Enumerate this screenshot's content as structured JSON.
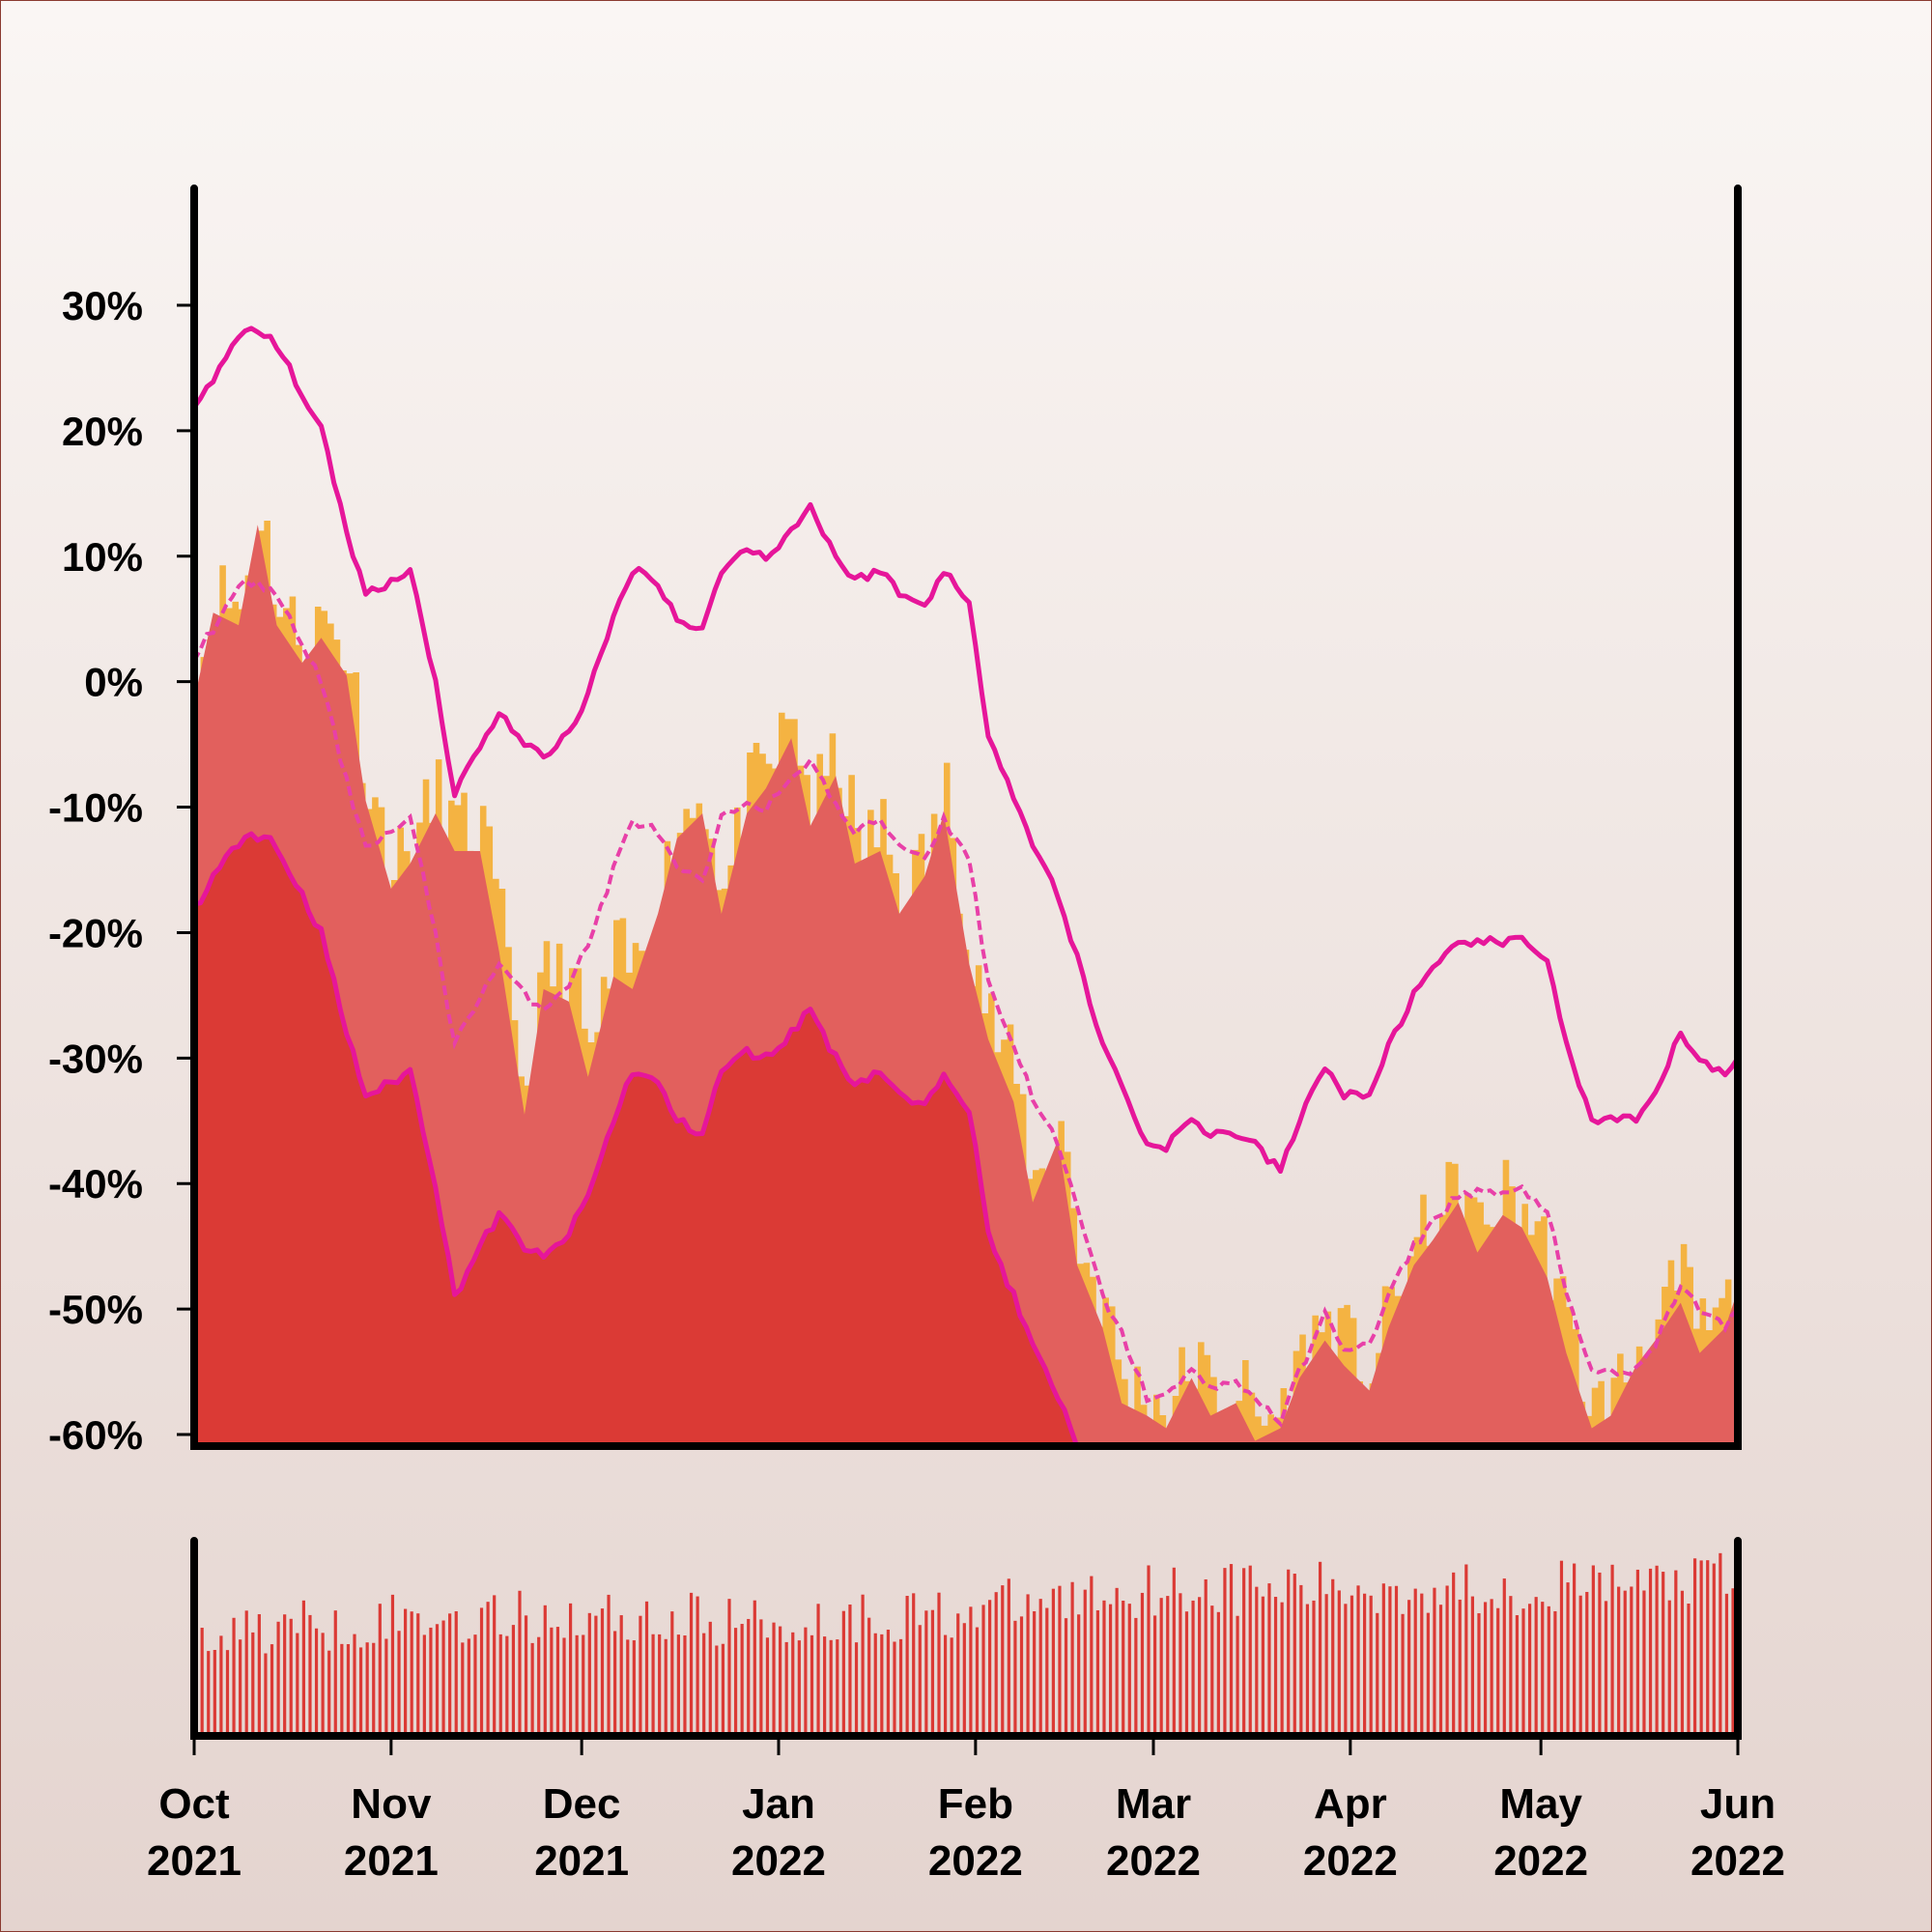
{
  "chart_data": {
    "type": "area",
    "title": "",
    "xlabel": "",
    "ylabel": "",
    "x_range": [
      "2021-10-01",
      "2022-06-01"
    ],
    "ylim": [
      -60,
      30
    ],
    "y_ticks": [
      {
        "value": 30,
        "label": "30%"
      },
      {
        "value": 20,
        "label": "20%"
      },
      {
        "value": 10,
        "label": "10%"
      },
      {
        "value": 0,
        "label": "0%"
      },
      {
        "value": -10,
        "label": "-10%"
      },
      {
        "value": -20,
        "label": "-20%"
      },
      {
        "value": -30,
        "label": "-30%"
      },
      {
        "value": -40,
        "label": "-40%"
      },
      {
        "value": -50,
        "label": "-50%"
      },
      {
        "value": -60,
        "label": "-60%"
      }
    ],
    "x_ticks": [
      {
        "date": "2021-10-01",
        "month": "Oct",
        "year": "2021"
      },
      {
        "date": "2021-11-01",
        "month": "Nov",
        "year": "2021"
      },
      {
        "date": "2021-12-01",
        "month": "Dec",
        "year": "2021"
      },
      {
        "date": "2022-01-01",
        "month": "Jan",
        "year": "2022"
      },
      {
        "date": "2022-02-01",
        "month": "Feb",
        "year": "2022"
      },
      {
        "date": "2022-03-01",
        "month": "Mar",
        "year": "2022"
      },
      {
        "date": "2022-04-01",
        "month": "Apr",
        "year": "2022"
      },
      {
        "date": "2022-05-01",
        "month": "May",
        "year": "2022"
      },
      {
        "date": "2022-06-01",
        "month": "Jun",
        "year": "2022"
      }
    ],
    "grid": false,
    "legend": "none",
    "colors": {
      "background_top": "#faf6f4",
      "background_bottom": "#e4d4cf",
      "frame": "#000000",
      "band_fill": "#f4b342",
      "price_fill": "#e2605d",
      "lower_band_fill": "#db3a35",
      "band_line": "#e6169a",
      "average_line": "#e840a8",
      "volume_fill": "#db3a35"
    },
    "series": [
      {
        "role": "price",
        "style": "filled-area",
        "points": [
          [
            "2021-10-01",
            0
          ],
          [
            "2021-10-04",
            7
          ],
          [
            "2021-10-08",
            6
          ],
          [
            "2021-10-11",
            14
          ],
          [
            "2021-10-14",
            6
          ],
          [
            "2021-10-18",
            3
          ],
          [
            "2021-10-21",
            5
          ],
          [
            "2021-10-25",
            2
          ],
          [
            "2021-10-28",
            -8
          ],
          [
            "2021-11-01",
            -15
          ],
          [
            "2021-11-04",
            -13
          ],
          [
            "2021-11-08",
            -9
          ],
          [
            "2021-11-11",
            -12
          ],
          [
            "2021-11-15",
            -12
          ],
          [
            "2021-11-18",
            -20
          ],
          [
            "2021-11-22",
            -33
          ],
          [
            "2021-11-25",
            -23
          ],
          [
            "2021-11-29",
            -24
          ],
          [
            "2021-12-02",
            -30
          ],
          [
            "2021-12-06",
            -22
          ],
          [
            "2021-12-09",
            -23
          ],
          [
            "2021-12-13",
            -17
          ],
          [
            "2021-12-16",
            -11
          ],
          [
            "2021-12-20",
            -9
          ],
          [
            "2021-12-23",
            -17
          ],
          [
            "2021-12-27",
            -9
          ],
          [
            "2021-12-30",
            -7
          ],
          [
            "2022-01-03",
            -3
          ],
          [
            "2022-01-06",
            -10
          ],
          [
            "2022-01-10",
            -6
          ],
          [
            "2022-01-13",
            -13
          ],
          [
            "2022-01-17",
            -12
          ],
          [
            "2022-01-20",
            -17
          ],
          [
            "2022-01-24",
            -14
          ],
          [
            "2022-01-27",
            -9
          ],
          [
            "2022-01-31",
            -21
          ],
          [
            "2022-02-03",
            -27
          ],
          [
            "2022-02-07",
            -32
          ],
          [
            "2022-02-10",
            -40
          ],
          [
            "2022-02-14",
            -35
          ],
          [
            "2022-02-17",
            -45
          ],
          [
            "2022-02-21",
            -50
          ],
          [
            "2022-02-24",
            -56
          ],
          [
            "2022-02-28",
            -57
          ],
          [
            "2022-03-03",
            -58
          ],
          [
            "2022-03-07",
            -54
          ],
          [
            "2022-03-10",
            -57
          ],
          [
            "2022-03-14",
            -56
          ],
          [
            "2022-03-17",
            -59
          ],
          [
            "2022-03-21",
            -58
          ],
          [
            "2022-03-24",
            -54
          ],
          [
            "2022-03-28",
            -51
          ],
          [
            "2022-03-31",
            -53
          ],
          [
            "2022-04-04",
            -55
          ],
          [
            "2022-04-07",
            -50
          ],
          [
            "2022-04-11",
            -45
          ],
          [
            "2022-04-14",
            -43
          ],
          [
            "2022-04-18",
            -40
          ],
          [
            "2022-04-21",
            -44
          ],
          [
            "2022-04-25",
            -41
          ],
          [
            "2022-04-28",
            -42
          ],
          [
            "2022-05-02",
            -46
          ],
          [
            "2022-05-05",
            -52
          ],
          [
            "2022-05-09",
            -58
          ],
          [
            "2022-05-12",
            -57
          ],
          [
            "2022-05-16",
            -53
          ],
          [
            "2022-05-19",
            -51
          ],
          [
            "2022-05-23",
            -48
          ],
          [
            "2022-05-26",
            -52
          ],
          [
            "2022-05-30",
            -50
          ],
          [
            "2022-06-01",
            -47
          ]
        ]
      },
      {
        "role": "upper-band",
        "style": "solid-line",
        "points": [
          [
            "2021-10-01",
            22
          ],
          [
            "2021-10-05",
            25
          ],
          [
            "2021-10-09",
            28
          ],
          [
            "2021-10-13",
            27.5
          ],
          [
            "2021-10-17",
            24
          ],
          [
            "2021-10-21",
            20
          ],
          [
            "2021-10-25",
            12
          ],
          [
            "2021-10-28",
            7
          ],
          [
            "2021-11-01",
            8
          ],
          [
            "2021-11-04",
            9
          ],
          [
            "2021-11-08",
            0
          ],
          [
            "2021-11-11",
            -9
          ],
          [
            "2021-11-15",
            -5
          ],
          [
            "2021-11-18",
            -2.5
          ],
          [
            "2021-11-22",
            -5
          ],
          [
            "2021-11-25",
            -6
          ],
          [
            "2021-11-29",
            -4
          ],
          [
            "2021-12-02",
            -1
          ],
          [
            "2021-12-06",
            5
          ],
          [
            "2021-12-09",
            9
          ],
          [
            "2021-12-13",
            8
          ],
          [
            "2021-12-16",
            5
          ],
          [
            "2021-12-20",
            4
          ],
          [
            "2021-12-23",
            9
          ],
          [
            "2021-12-27",
            10.5
          ],
          [
            "2021-12-30",
            10
          ],
          [
            "2022-01-03",
            12
          ],
          [
            "2022-01-06",
            14
          ],
          [
            "2022-01-10",
            10
          ],
          [
            "2022-01-13",
            8
          ],
          [
            "2022-01-17",
            9
          ],
          [
            "2022-01-20",
            7
          ],
          [
            "2022-01-24",
            6
          ],
          [
            "2022-01-27",
            9
          ],
          [
            "2022-01-31",
            6
          ],
          [
            "2022-02-03",
            -4
          ],
          [
            "2022-02-07",
            -9
          ],
          [
            "2022-02-10",
            -13
          ],
          [
            "2022-02-14",
            -17
          ],
          [
            "2022-02-17",
            -22
          ],
          [
            "2022-02-21",
            -29
          ],
          [
            "2022-02-24",
            -32
          ],
          [
            "2022-02-28",
            -37
          ],
          [
            "2022-03-03",
            -37
          ],
          [
            "2022-03-07",
            -35
          ],
          [
            "2022-03-10",
            -36
          ],
          [
            "2022-03-14",
            -36
          ],
          [
            "2022-03-17",
            -37
          ],
          [
            "2022-03-21",
            -39
          ],
          [
            "2022-03-24",
            -35
          ],
          [
            "2022-03-28",
            -30.5
          ],
          [
            "2022-03-31",
            -33
          ],
          [
            "2022-04-04",
            -33
          ],
          [
            "2022-04-07",
            -29
          ],
          [
            "2022-04-11",
            -25
          ],
          [
            "2022-04-14",
            -23
          ],
          [
            "2022-04-18",
            -21
          ],
          [
            "2022-04-21",
            -20.5
          ],
          [
            "2022-04-25",
            -21
          ],
          [
            "2022-04-28",
            -20.5
          ],
          [
            "2022-05-02",
            -22
          ],
          [
            "2022-05-05",
            -29
          ],
          [
            "2022-05-09",
            -35
          ],
          [
            "2022-05-12",
            -35
          ],
          [
            "2022-05-16",
            -35
          ],
          [
            "2022-05-19",
            -33
          ],
          [
            "2022-05-23",
            -28
          ],
          [
            "2022-05-26",
            -30
          ],
          [
            "2022-05-30",
            -31.5
          ],
          [
            "2022-06-01",
            -30
          ]
        ]
      },
      {
        "role": "moving-average",
        "style": "dashed-line",
        "points": [
          [
            "2021-10-01",
            2
          ],
          [
            "2021-10-05",
            5
          ],
          [
            "2021-10-09",
            8
          ],
          [
            "2021-10-13",
            7.5
          ],
          [
            "2021-10-17",
            4
          ],
          [
            "2021-10-21",
            0
          ],
          [
            "2021-10-25",
            -8
          ],
          [
            "2021-10-28",
            -13
          ],
          [
            "2021-11-01",
            -12
          ],
          [
            "2021-11-04",
            -11
          ],
          [
            "2021-11-08",
            -20
          ],
          [
            "2021-11-11",
            -29
          ],
          [
            "2021-11-15",
            -25
          ],
          [
            "2021-11-18",
            -22.5
          ],
          [
            "2021-11-22",
            -25
          ],
          [
            "2021-11-25",
            -26
          ],
          [
            "2021-11-29",
            -24
          ],
          [
            "2021-12-02",
            -21
          ],
          [
            "2021-12-06",
            -15
          ],
          [
            "2021-12-09",
            -11
          ],
          [
            "2021-12-13",
            -12
          ],
          [
            "2021-12-16",
            -15
          ],
          [
            "2021-12-20",
            -16
          ],
          [
            "2021-12-23",
            -11
          ],
          [
            "2021-12-27",
            -9.5
          ],
          [
            "2021-12-30",
            -10
          ],
          [
            "2022-01-03",
            -8
          ],
          [
            "2022-01-06",
            -6
          ],
          [
            "2022-01-10",
            -10
          ],
          [
            "2022-01-13",
            -12
          ],
          [
            "2022-01-17",
            -11
          ],
          [
            "2022-01-20",
            -13
          ],
          [
            "2022-01-24",
            -14
          ],
          [
            "2022-01-27",
            -11
          ],
          [
            "2022-01-31",
            -14
          ],
          [
            "2022-02-03",
            -24
          ],
          [
            "2022-02-07",
            -29
          ],
          [
            "2022-02-10",
            -33
          ],
          [
            "2022-02-14",
            -37
          ],
          [
            "2022-02-17",
            -42
          ],
          [
            "2022-02-21",
            -49
          ],
          [
            "2022-02-24",
            -52
          ],
          [
            "2022-02-28",
            -57
          ],
          [
            "2022-03-03",
            -57
          ],
          [
            "2022-03-07",
            -55
          ],
          [
            "2022-03-10",
            -56
          ],
          [
            "2022-03-14",
            -56
          ],
          [
            "2022-03-17",
            -57
          ],
          [
            "2022-03-21",
            -59
          ],
          [
            "2022-03-24",
            -55
          ],
          [
            "2022-03-28",
            -50.5
          ],
          [
            "2022-03-31",
            -53
          ],
          [
            "2022-04-04",
            -53
          ],
          [
            "2022-04-07",
            -49
          ],
          [
            "2022-04-11",
            -45
          ],
          [
            "2022-04-14",
            -43
          ],
          [
            "2022-04-18",
            -41
          ],
          [
            "2022-04-21",
            -40.5
          ],
          [
            "2022-04-25",
            -41
          ],
          [
            "2022-04-28",
            -40.5
          ],
          [
            "2022-05-02",
            -42
          ],
          [
            "2022-05-05",
            -49
          ],
          [
            "2022-05-09",
            -55
          ],
          [
            "2022-05-12",
            -55
          ],
          [
            "2022-05-16",
            -55
          ],
          [
            "2022-05-19",
            -53
          ],
          [
            "2022-05-23",
            -48
          ],
          [
            "2022-05-26",
            -50
          ],
          [
            "2022-05-30",
            -51.5
          ],
          [
            "2022-06-01",
            -50
          ]
        ]
      },
      {
        "role": "lower-band",
        "style": "solid-line-filled",
        "points": [
          [
            "2021-10-01",
            -18
          ],
          [
            "2021-10-05",
            -15
          ],
          [
            "2021-10-09",
            -12
          ],
          [
            "2021-10-13",
            -12.5
          ],
          [
            "2021-10-17",
            -16
          ],
          [
            "2021-10-21",
            -20
          ],
          [
            "2021-10-25",
            -28
          ],
          [
            "2021-10-28",
            -33
          ],
          [
            "2021-11-01",
            -32
          ],
          [
            "2021-11-04",
            -31
          ],
          [
            "2021-11-08",
            -40
          ],
          [
            "2021-11-11",
            -49
          ],
          [
            "2021-11-15",
            -45
          ],
          [
            "2021-11-18",
            -42.5
          ],
          [
            "2021-11-22",
            -45
          ],
          [
            "2021-11-25",
            -46
          ],
          [
            "2021-11-29",
            -44
          ],
          [
            "2021-12-02",
            -41
          ],
          [
            "2021-12-06",
            -35
          ],
          [
            "2021-12-09",
            -31
          ],
          [
            "2021-12-13",
            -32
          ],
          [
            "2021-12-16",
            -35
          ],
          [
            "2021-12-20",
            -36
          ],
          [
            "2021-12-23",
            -31
          ],
          [
            "2021-12-27",
            -29.5
          ],
          [
            "2021-12-30",
            -30
          ],
          [
            "2022-01-03",
            -28
          ],
          [
            "2022-01-06",
            -26
          ],
          [
            "2022-01-10",
            -30
          ],
          [
            "2022-01-13",
            -32
          ],
          [
            "2022-01-17",
            -31
          ],
          [
            "2022-01-20",
            -33
          ],
          [
            "2022-01-24",
            -34
          ],
          [
            "2022-01-27",
            -31
          ],
          [
            "2022-01-31",
            -34
          ],
          [
            "2022-02-03",
            -44
          ],
          [
            "2022-02-07",
            -49
          ],
          [
            "2022-02-10",
            -53
          ],
          [
            "2022-02-14",
            -57
          ],
          [
            "2022-02-17",
            -61
          ]
        ]
      }
    ],
    "volume": {
      "type": "bar",
      "axis_labels": "none",
      "trend": [
        [
          "2021-10-01",
          1.0
        ],
        [
          "2021-11-01",
          1.35
        ],
        [
          "2021-12-01",
          1.4
        ],
        [
          "2022-01-01",
          1.25
        ],
        [
          "2022-02-01",
          1.55
        ],
        [
          "2022-03-01",
          2.1
        ],
        [
          "2022-04-01",
          2.05
        ],
        [
          "2022-05-01",
          2.1
        ],
        [
          "2022-06-01",
          2.3
        ]
      ]
    }
  }
}
